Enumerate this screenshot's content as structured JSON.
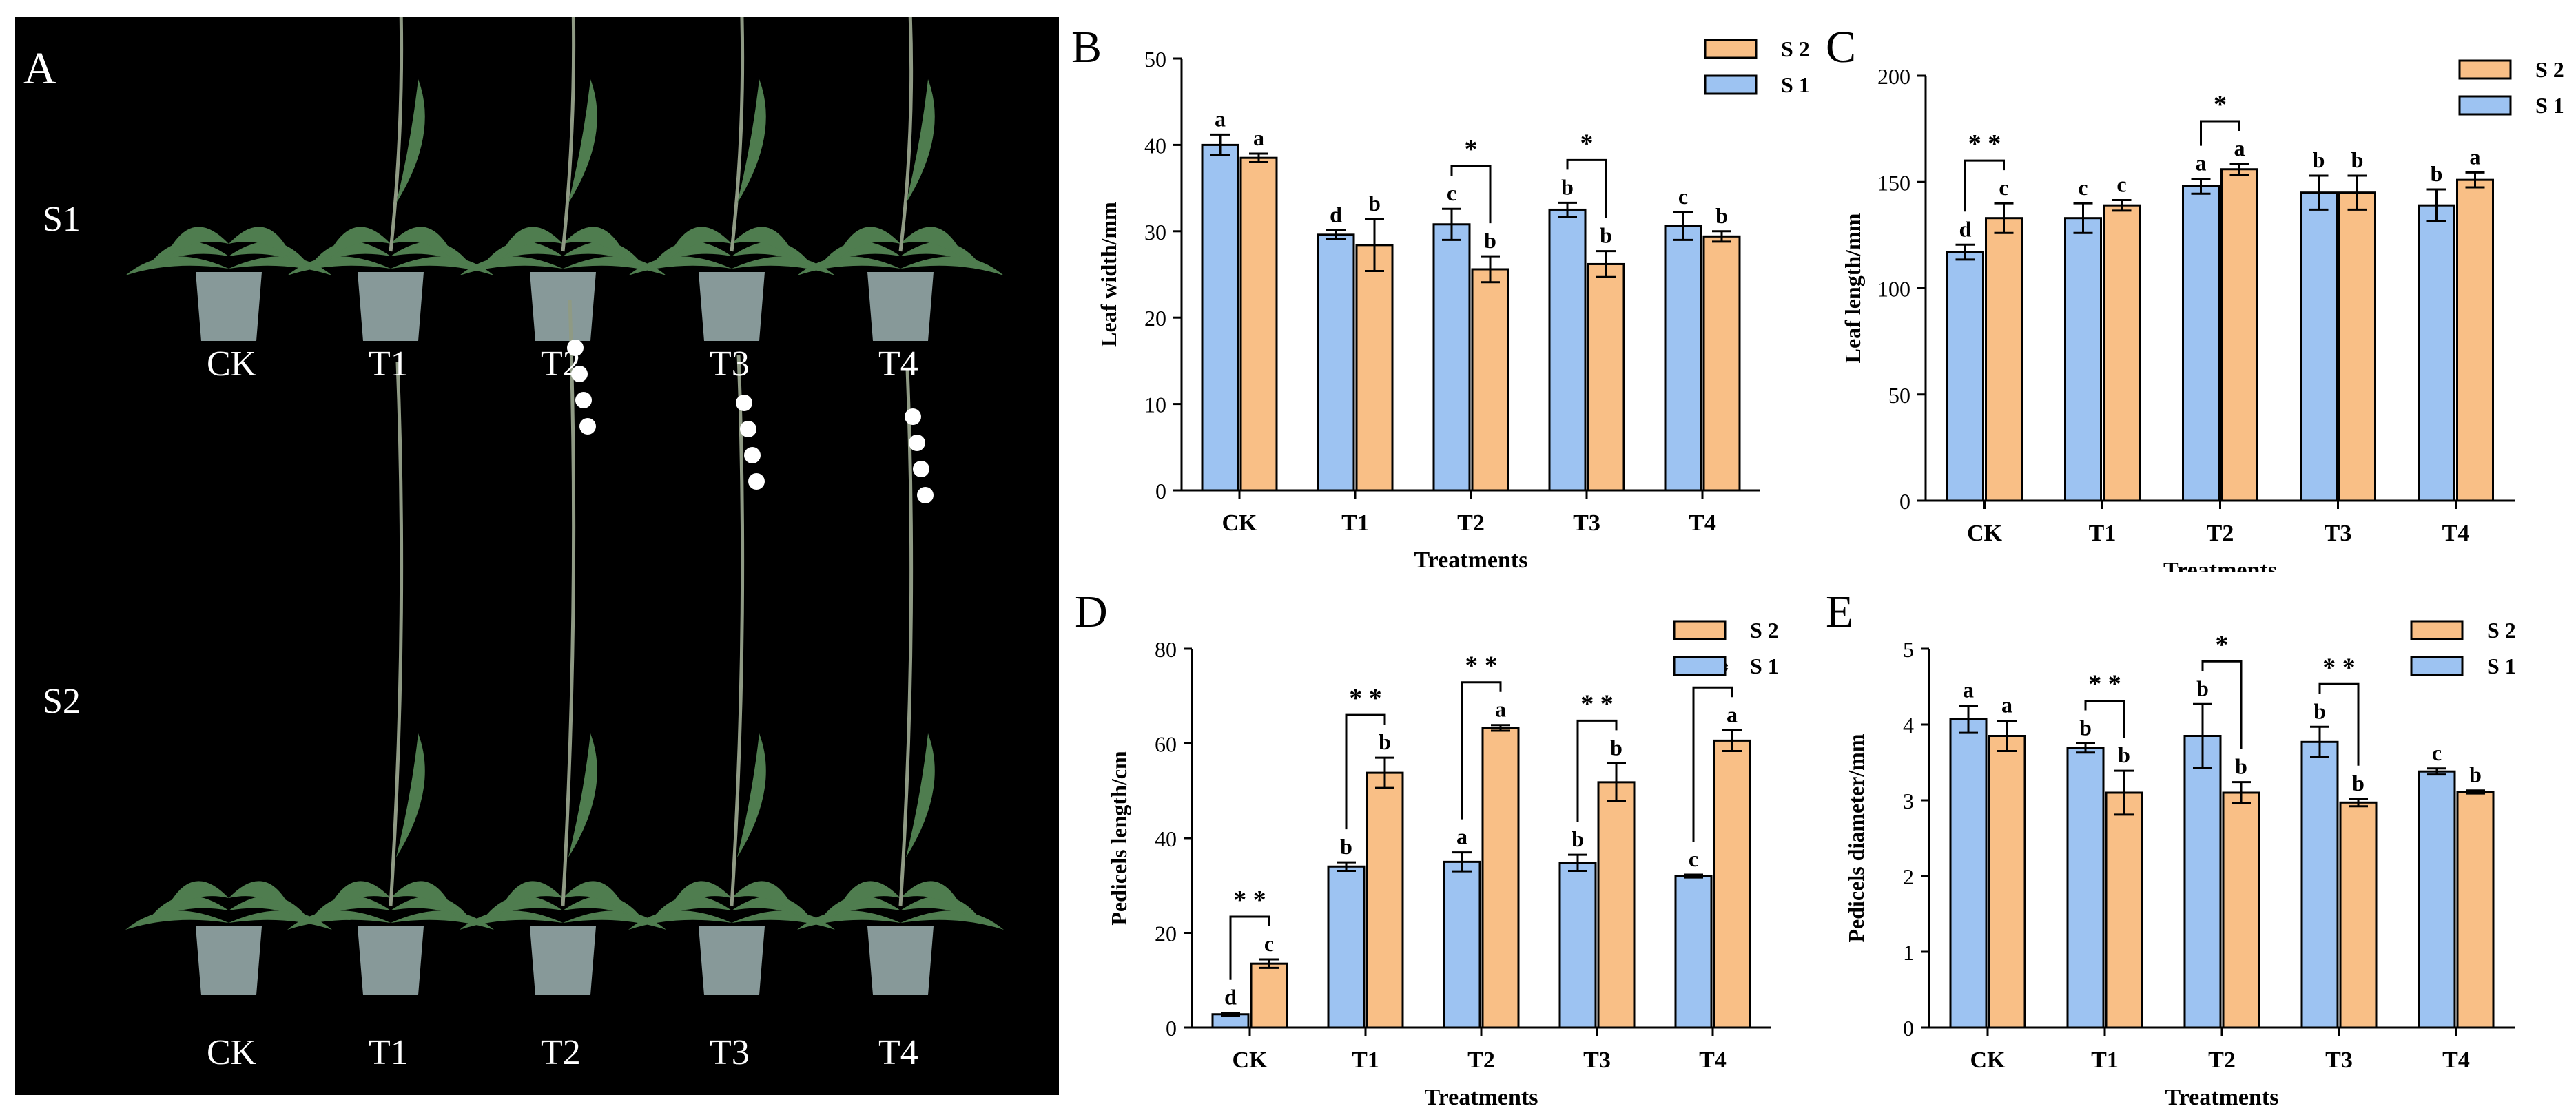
{
  "colors": {
    "S1": "#9dc3f2",
    "S2": "#f9bf86",
    "photo_bg": "#000000",
    "stem": "#8f9a84",
    "leaf": "#4f7d4f",
    "pot": "#9fb4b4",
    "flower": "#ffffff"
  },
  "panel_a": {
    "label": "A",
    "row1": {
      "label": "S1",
      "plants": [
        "CK",
        "T1",
        "T2",
        "T3",
        "T4"
      ]
    },
    "row2": {
      "label": "S2",
      "plants": [
        "CK",
        "T1",
        "T2",
        "T3",
        "T4"
      ]
    }
  },
  "chart_data": [
    {
      "panel": "B",
      "type": "bar",
      "categories": [
        "CK",
        "T1",
        "T2",
        "T3",
        "T4"
      ],
      "series": [
        {
          "name": "S1",
          "values": [
            40,
            29.6,
            30.8,
            32.5,
            30.6
          ],
          "errors": [
            1.2,
            0.5,
            1.8,
            0.8,
            1.6
          ],
          "letters": [
            "a",
            "d",
            "c",
            "b",
            "c"
          ]
        },
        {
          "name": "S2",
          "values": [
            38.5,
            28.4,
            25.6,
            26.2,
            29.4
          ],
          "errors": [
            0.5,
            3.0,
            1.5,
            1.5,
            0.6
          ],
          "letters": [
            "a",
            "b",
            "b",
            "b",
            "b"
          ]
        }
      ],
      "legend": [
        "S 2",
        "S 1"
      ],
      "xlabel": "Treatments",
      "ylabel": "Leaf width/mm",
      "ylim": [
        0,
        50
      ],
      "yticks": [
        "0",
        "10",
        "20",
        "30",
        "40",
        "50"
      ],
      "significance": [
        {
          "category": "T2",
          "mark": "*"
        },
        {
          "category": "T3",
          "mark": "*"
        }
      ]
    },
    {
      "panel": "C",
      "type": "bar",
      "categories": [
        "CK",
        "T1",
        "T2",
        "T3",
        "T4"
      ],
      "series": [
        {
          "name": "S1",
          "values": [
            117,
            133,
            148,
            145,
            139
          ],
          "errors": [
            3.5,
            7,
            3.5,
            8,
            7.5
          ],
          "letters": [
            "d",
            "c",
            "a",
            "b",
            "b"
          ]
        },
        {
          "name": "S2",
          "values": [
            133,
            139,
            156,
            145,
            151
          ],
          "errors": [
            7,
            2.5,
            2.5,
            8,
            3.5
          ],
          "letters": [
            "c",
            "c",
            "a",
            "b",
            "a"
          ]
        }
      ],
      "legend": [
        "S 2",
        "S 1"
      ],
      "xlabel": "Treatments",
      "ylabel": "Leaf length/mm",
      "ylim": [
        0,
        200
      ],
      "yticks": [
        "0",
        "50",
        "100",
        "150",
        "200"
      ],
      "significance": [
        {
          "category": "CK",
          "mark": "* *"
        },
        {
          "category": "T2",
          "mark": "*"
        }
      ]
    },
    {
      "panel": "D",
      "type": "bar",
      "categories": [
        "CK",
        "T1",
        "T2",
        "T3",
        "T4"
      ],
      "series": [
        {
          "name": "S1",
          "values": [
            2.8,
            34,
            35,
            34.8,
            32
          ],
          "errors": [
            0.3,
            0.9,
            2.0,
            1.7,
            0.3
          ],
          "letters": [
            "d",
            "b",
            "a",
            "b",
            "c"
          ]
        },
        {
          "name": "S2",
          "values": [
            13.5,
            53.8,
            63.3,
            51.8,
            60.6
          ],
          "errors": [
            0.9,
            3.2,
            0.6,
            4.0,
            2.2
          ],
          "letters": [
            "c",
            "b",
            "a",
            "b",
            "a"
          ]
        }
      ],
      "legend": [
        "S 2",
        "S 1"
      ],
      "xlabel": "Treatments",
      "ylabel": "Pedicels length/cm",
      "ylim": [
        0,
        80
      ],
      "yticks": [
        "0",
        "20",
        "40",
        "60",
        "80"
      ],
      "significance": [
        {
          "category": "CK",
          "mark": "* *"
        },
        {
          "category": "T1",
          "mark": "* *"
        },
        {
          "category": "T2",
          "mark": "* *"
        },
        {
          "category": "T3",
          "mark": "* *"
        },
        {
          "category": "T4",
          "mark": "* *"
        }
      ]
    },
    {
      "panel": "E",
      "type": "bar",
      "categories": [
        "CK",
        "T1",
        "T2",
        "T3",
        "T4"
      ],
      "series": [
        {
          "name": "S1",
          "values": [
            4.07,
            3.69,
            3.85,
            3.77,
            3.38
          ],
          "errors": [
            0.18,
            0.06,
            0.42,
            0.2,
            0.04
          ],
          "letters": [
            "a",
            "b",
            "b",
            "b",
            "c"
          ]
        },
        {
          "name": "S2",
          "values": [
            3.85,
            3.1,
            3.1,
            2.97,
            3.11
          ],
          "errors": [
            0.2,
            0.29,
            0.14,
            0.05,
            0.02
          ],
          "letters": [
            "a",
            "b",
            "b",
            "b",
            "b"
          ]
        }
      ],
      "legend": [
        "S 2",
        "S 1"
      ],
      "xlabel": "Treatments",
      "ylabel": "Pedicels diameter/mm",
      "ylim": [
        0,
        5
      ],
      "yticks": [
        "0",
        "1",
        "2",
        "3",
        "4",
        "5"
      ],
      "significance": [
        {
          "category": "T1",
          "mark": "* *"
        },
        {
          "category": "T2",
          "mark": "*"
        },
        {
          "category": "T3",
          "mark": "* *"
        }
      ]
    }
  ]
}
